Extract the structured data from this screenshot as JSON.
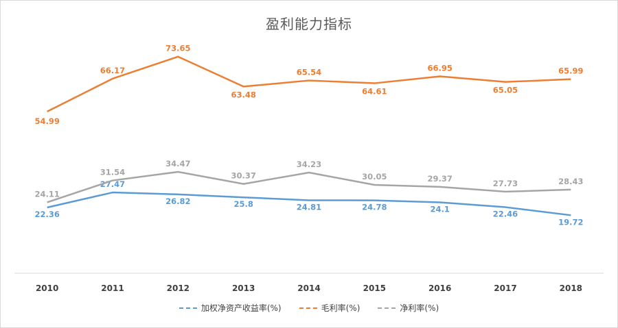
{
  "chart_data": {
    "type": "line",
    "title": "盈利能力指标",
    "categories": [
      "2010",
      "2011",
      "2012",
      "2013",
      "2014",
      "2015",
      "2016",
      "2017",
      "2018"
    ],
    "ylim": [
      0,
      85
    ],
    "grid": false,
    "legend": "bottom",
    "series": [
      {
        "name": "加权净资产收益率(%)",
        "color": "#5b9bd5",
        "values": [
          22.36,
          27.47,
          26.82,
          25.8,
          24.81,
          24.78,
          24.1,
          22.46,
          19.72
        ],
        "labels": [
          "22.36",
          "27.47",
          "26.82",
          "25.8",
          "24.81",
          "24.78",
          "24.1",
          "22.46",
          "19.72"
        ]
      },
      {
        "name": "毛利率(%)",
        "color": "#ed7d31",
        "values": [
          54.99,
          66.17,
          73.65,
          63.48,
          65.54,
          64.61,
          66.95,
          65.05,
          65.99
        ],
        "labels": [
          "54.99",
          "66.17",
          "73.65",
          "63.48",
          "65.54",
          "64.61",
          "66.95",
          "65.05",
          "65.99"
        ]
      },
      {
        "name": "净利率(%)",
        "color": "#a5a5a5",
        "values": [
          24.11,
          31.54,
          34.47,
          30.37,
          34.23,
          30.05,
          29.37,
          27.73,
          28.43
        ],
        "labels": [
          "24.11",
          "31.54",
          "34.47",
          "30.37",
          "34.23",
          "30.05",
          "29.37",
          "27.73",
          "28.43"
        ]
      }
    ]
  }
}
